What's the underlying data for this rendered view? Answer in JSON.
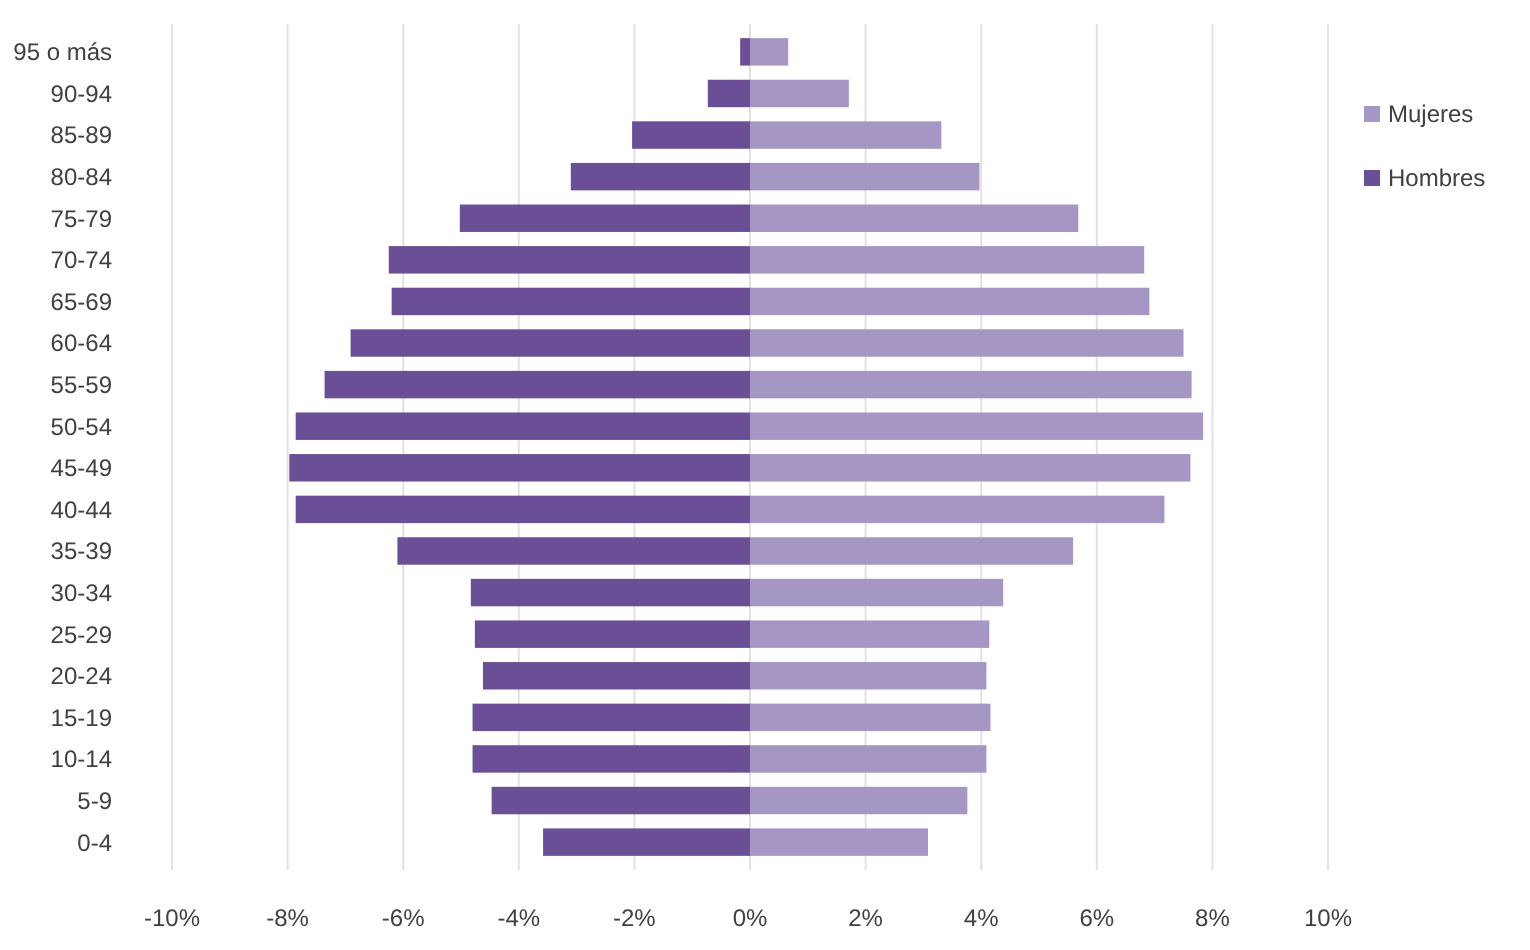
{
  "chart_data": {
    "type": "bar",
    "orientation": "horizontal",
    "stacked": true,
    "categories": [
      "95 o más",
      "90-94",
      "85-89",
      "80-84",
      "75-79",
      "70-74",
      "65-69",
      "60-64",
      "55-59",
      "50-54",
      "45-49",
      "40-44",
      "35-39",
      "30-34",
      "25-29",
      "20-24",
      "15-19",
      "10-14",
      "5-9",
      "0-4"
    ],
    "series": [
      {
        "name": "Mujeres",
        "color": "#a596c4",
        "values": [
          0.66,
          1.71,
          3.31,
          3.97,
          5.68,
          6.82,
          6.91,
          7.5,
          7.64,
          7.84,
          7.62,
          7.17,
          5.59,
          4.38,
          4.14,
          4.09,
          4.16,
          4.09,
          3.76,
          3.08
        ]
      },
      {
        "name": "Hombres",
        "color": "#6b4f96",
        "values": [
          -0.17,
          -0.73,
          -2.04,
          -3.1,
          -5.02,
          -6.25,
          -6.2,
          -6.91,
          -7.36,
          -7.86,
          -7.97,
          -7.86,
          -6.1,
          -4.83,
          -4.76,
          -4.62,
          -4.8,
          -4.8,
          -4.47,
          -3.58
        ]
      }
    ],
    "xlim": [
      -10,
      10
    ],
    "xticks": [
      {
        "value": -10,
        "label": "-10%"
      },
      {
        "value": -8,
        "label": "-8%"
      },
      {
        "value": -6,
        "label": "-6%"
      },
      {
        "value": -4,
        "label": "-4%"
      },
      {
        "value": -2,
        "label": "-2%"
      },
      {
        "value": 0,
        "label": "0%"
      },
      {
        "value": 2,
        "label": "2%"
      },
      {
        "value": 4,
        "label": "4%"
      },
      {
        "value": 6,
        "label": "6%"
      },
      {
        "value": 8,
        "label": "8%"
      },
      {
        "value": 10,
        "label": "10%"
      }
    ],
    "grid": "x",
    "legend": "right"
  }
}
